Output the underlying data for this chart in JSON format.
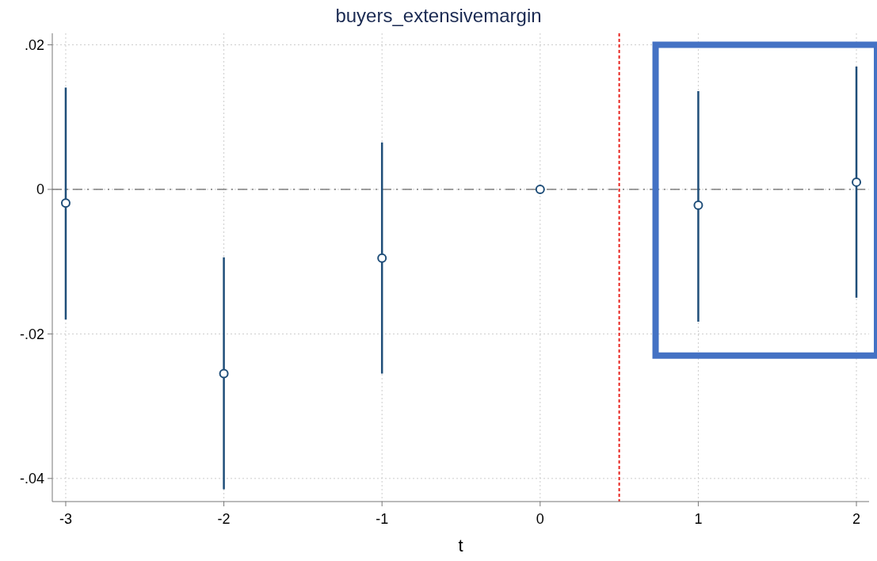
{
  "chart_data": {
    "type": "scatter",
    "title": "buyers_extensivemargin",
    "xlabel": "t",
    "x": [
      -3,
      -2,
      -1,
      0,
      1,
      2
    ],
    "series": [
      {
        "color": "#1f4e79",
        "values": [
          -0.0019,
          -0.0255,
          -0.0095,
          0,
          -0.0022,
          0.001
        ],
        "errors": [
          [
            -0.018,
            0.0141
          ],
          [
            -0.0415,
            -0.0094
          ],
          [
            -0.0255,
            0.0065
          ],
          null,
          [
            -0.0183,
            0.0136
          ],
          [
            -0.015,
            0.017
          ]
        ]
      }
    ],
    "xlim": [
      -3.085,
      2.08
    ],
    "xticks": [
      -3,
      -2,
      -1,
      0,
      1,
      2
    ],
    "ylim": [
      -0.0432,
      0.0216
    ],
    "yticks": [
      {
        "value": -0.04,
        "label": "-.04"
      },
      {
        "value": -0.02,
        "label": "-.02"
      },
      {
        "value": 0,
        "label": "0"
      },
      {
        "value": 0.02,
        "label": ".02"
      }
    ],
    "grid": true,
    "marker": "circle",
    "ref_lines": [
      {
        "axis": "y",
        "value": 0,
        "color": "#808080",
        "line_style": "dashed"
      },
      {
        "axis": "x",
        "value": 0.5,
        "color": "#e8251f",
        "line_style": "dotted"
      }
    ]
  }
}
